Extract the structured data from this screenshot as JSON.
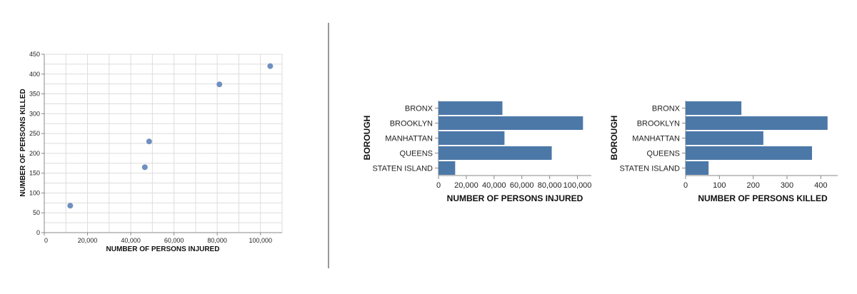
{
  "colors": {
    "mark": "#4c78a8",
    "scatter": "#6f8fbf",
    "grid": "#dddddd",
    "axis": "#888888",
    "divider": "#333333"
  },
  "chart_data": [
    {
      "type": "scatter",
      "xlabel": "NUMBER OF PERSONS INJURED",
      "ylabel": "NUMBER OF PERSONS KILLED",
      "xlim": [
        0,
        110000
      ],
      "ylim": [
        0,
        450
      ],
      "x_ticks": [
        0,
        20000,
        40000,
        60000,
        80000,
        100000
      ],
      "x_tick_labels": [
        "0",
        "20,000",
        "40,000",
        "60,000",
        "80,000",
        "100,000"
      ],
      "y_ticks": [
        0,
        50,
        100,
        150,
        200,
        250,
        300,
        350,
        400,
        450
      ],
      "y_tick_labels": [
        "0",
        "50",
        "100",
        "150",
        "200",
        "250",
        "300",
        "350",
        "400",
        "450"
      ],
      "grid": true,
      "points": [
        {
          "x": 12000,
          "y": 68
        },
        {
          "x": 46500,
          "y": 165
        },
        {
          "x": 48500,
          "y": 230
        },
        {
          "x": 81000,
          "y": 374
        },
        {
          "x": 104500,
          "y": 420
        }
      ]
    },
    {
      "type": "bar",
      "orientation": "horizontal",
      "categories": [
        "BRONX",
        "BROOKLYN",
        "MANHATTAN",
        "QUEENS",
        "STATEN ISLAND"
      ],
      "values": [
        46000,
        104000,
        47500,
        81500,
        12000
      ],
      "xlabel": "NUMBER OF PERSONS INJURED",
      "ylabel": "BOROUGH",
      "xlim": [
        0,
        110000
      ],
      "x_ticks": [
        0,
        20000,
        40000,
        60000,
        80000,
        100000
      ],
      "x_tick_labels": [
        "0",
        "20,000",
        "40,000",
        "60,000",
        "80,000",
        "100,000"
      ]
    },
    {
      "type": "bar",
      "orientation": "horizontal",
      "categories": [
        "BRONX",
        "BROOKLYN",
        "MANHATTAN",
        "QUEENS",
        "STATEN ISLAND"
      ],
      "values": [
        165,
        420,
        230,
        374,
        68
      ],
      "xlabel": "NUMBER OF PERSONS KILLED",
      "ylabel": "BOROUGH",
      "xlim": [
        0,
        450
      ],
      "x_ticks": [
        0,
        100,
        200,
        300,
        400
      ],
      "x_tick_labels": [
        "0",
        "100",
        "200",
        "300",
        "400"
      ]
    }
  ]
}
